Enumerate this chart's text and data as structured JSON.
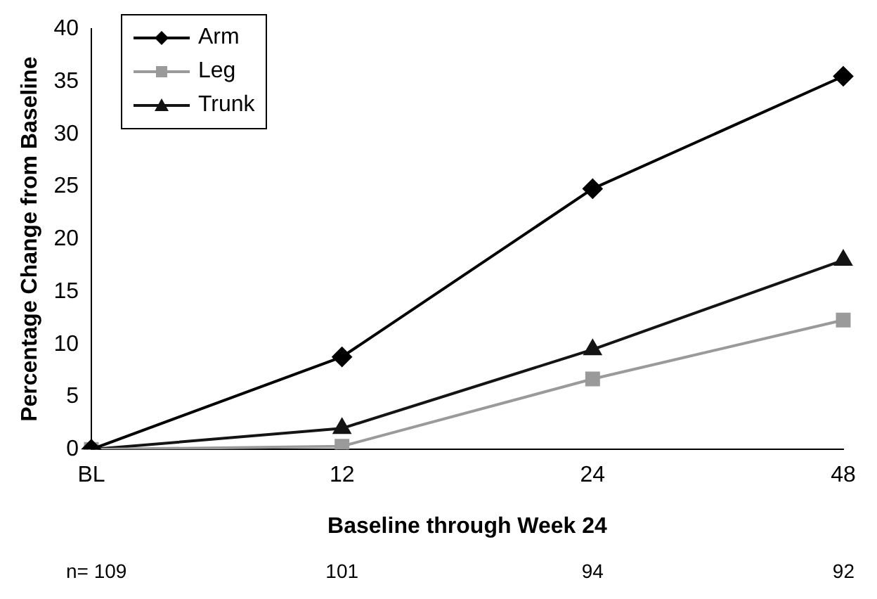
{
  "chart_data": {
    "type": "line",
    "xlabel": "Baseline through Week 24",
    "ylabel": "Percentage Change from Baseline",
    "categories": [
      "BL",
      "12",
      "24",
      "48"
    ],
    "series": [
      {
        "name": "Arm",
        "color": "#000000",
        "marker": "diamond",
        "values": [
          0,
          8.8,
          24.8,
          35.5
        ]
      },
      {
        "name": "Leg",
        "color": "#9a9a9a",
        "marker": "square",
        "values": [
          0,
          0.3,
          6.7,
          12.3
        ]
      },
      {
        "name": "Trunk",
        "color": "#141414",
        "marker": "triangle",
        "values": [
          0,
          2.0,
          9.5,
          18.0
        ]
      }
    ],
    "ylim": [
      0,
      40
    ],
    "yticks": [
      0,
      5,
      10,
      15,
      20,
      25,
      30,
      35,
      40
    ],
    "grid": false,
    "legend": "top left",
    "annotations": [
      "n= 109",
      "101",
      "94",
      "92"
    ]
  }
}
